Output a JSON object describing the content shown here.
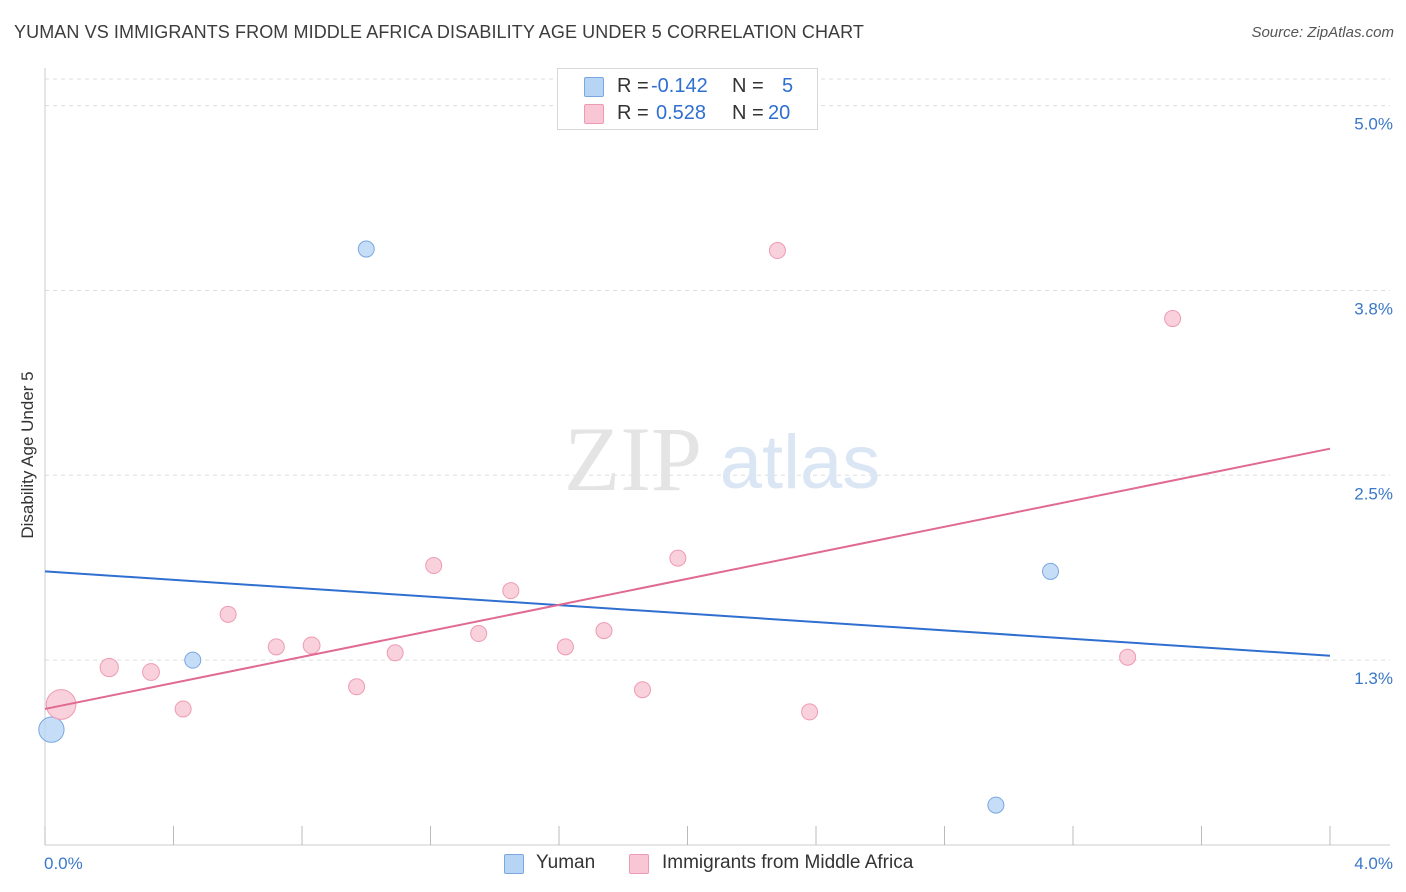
{
  "header": {
    "title": "YUMAN VS IMMIGRANTS FROM MIDDLE AFRICA DISABILITY AGE UNDER 5 CORRELATION CHART",
    "source": "Source: ZipAtlas.com"
  },
  "watermark": {
    "zip": "ZIP",
    "atlas": "atlas"
  },
  "legend": {
    "rows": [
      {
        "r_label": "R =",
        "r_value": "-0.142",
        "n_label": "N =",
        "n_value": "5"
      },
      {
        "r_label": "R =",
        "r_value": "0.528",
        "n_label": "N =",
        "n_value": "20"
      }
    ]
  },
  "colors": {
    "yuman_fill": "#b8d4f5",
    "yuman_stroke": "#7aa7e0",
    "yuman_line": "#2f6fcf",
    "africa_fill": "#f8c6d4",
    "africa_stroke": "#ee9ab2",
    "africa_line": "#e06a92",
    "axis_text": "#3a78c9",
    "grid": "#dddddd"
  },
  "chart_data": {
    "type": "scatter",
    "title": "YUMAN VS IMMIGRANTS FROM MIDDLE AFRICA DISABILITY AGE UNDER 5 CORRELATION CHART",
    "xlabel": "",
    "ylabel": "Disability Age Under 5",
    "xlim": [
      0.0,
      4.0
    ],
    "ylim": [
      0.0,
      5.0
    ],
    "x_tick_labels": [
      "0.0%",
      "4.0%"
    ],
    "y_ticks": [
      1.25,
      2.5,
      3.75,
      5.0
    ],
    "y_tick_labels": [
      "1.3%",
      "2.5%",
      "3.8%",
      "5.0%"
    ],
    "grid": true,
    "series": [
      {
        "name": "Yuman",
        "r": -0.142,
        "n": 5,
        "points": [
          {
            "x": 0.02,
            "y": 0.78,
            "size": 1.6
          },
          {
            "x": 0.46,
            "y": 1.25,
            "size": 1.0
          },
          {
            "x": 1.0,
            "y": 4.03,
            "size": 1.0
          },
          {
            "x": 3.13,
            "y": 1.85,
            "size": 1.0
          },
          {
            "x": 2.96,
            "y": 0.27,
            "size": 1.0
          }
        ],
        "trend": {
          "x0": 0.0,
          "y0": 1.85,
          "x1": 4.0,
          "y1": 1.28
        }
      },
      {
        "name": "Immigrants from Middle Africa",
        "r": 0.528,
        "n": 20,
        "points": [
          {
            "x": 0.05,
            "y": 0.95,
            "size": 2.2
          },
          {
            "x": 0.2,
            "y": 1.2,
            "size": 1.3
          },
          {
            "x": 0.33,
            "y": 1.17,
            "size": 1.1
          },
          {
            "x": 0.43,
            "y": 0.92,
            "size": 1.0
          },
          {
            "x": 0.57,
            "y": 1.56,
            "size": 1.0
          },
          {
            "x": 0.72,
            "y": 1.34,
            "size": 1.0
          },
          {
            "x": 0.83,
            "y": 1.35,
            "size": 1.1
          },
          {
            "x": 0.97,
            "y": 1.07,
            "size": 1.0
          },
          {
            "x": 1.09,
            "y": 1.3,
            "size": 1.0
          },
          {
            "x": 1.21,
            "y": 1.89,
            "size": 1.0
          },
          {
            "x": 1.35,
            "y": 1.43,
            "size": 1.0
          },
          {
            "x": 1.45,
            "y": 1.72,
            "size": 1.0
          },
          {
            "x": 1.62,
            "y": 1.34,
            "size": 1.0
          },
          {
            "x": 1.74,
            "y": 1.45,
            "size": 1.0
          },
          {
            "x": 1.86,
            "y": 1.05,
            "size": 1.0
          },
          {
            "x": 1.97,
            "y": 1.94,
            "size": 1.0
          },
          {
            "x": 2.28,
            "y": 4.02,
            "size": 1.0
          },
          {
            "x": 2.38,
            "y": 0.9,
            "size": 1.0
          },
          {
            "x": 3.37,
            "y": 1.27,
            "size": 1.0
          },
          {
            "x": 3.51,
            "y": 3.56,
            "size": 1.0
          }
        ],
        "trend": {
          "x0": 0.0,
          "y0": 0.92,
          "x1": 4.0,
          "y1": 2.68
        }
      }
    ]
  }
}
